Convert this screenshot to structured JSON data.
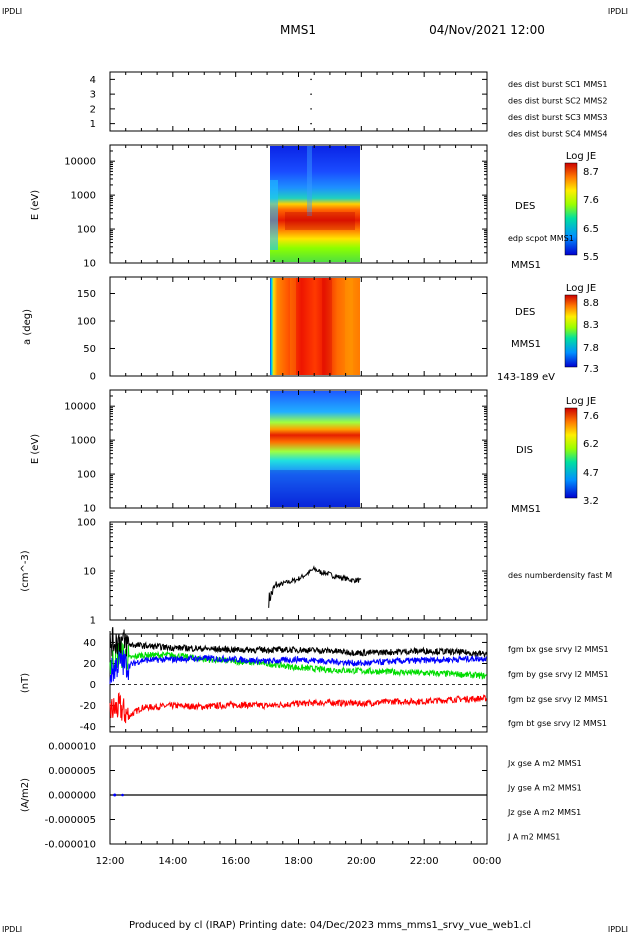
{
  "header": {
    "corner_left": "IPDLI",
    "corner_right": "IPDLI",
    "mission": "MMS1",
    "datetime": "04/Nov/2021 12:00",
    "corner_bottom_left": "IPDLI",
    "corner_bottom_right": "IPDLI"
  },
  "footer": {
    "text": "Produced by cl (IRAP)   Printing date: 04/Dec/2023   mms_mms1_srvy_vue_web1.cl"
  },
  "time_axis": {
    "ticks": [
      "12:00",
      "14:00",
      "16:00",
      "18:00",
      "20:00",
      "22:00",
      "00:00"
    ]
  },
  "chart_data": [
    {
      "type": "scatter",
      "panel": "burst",
      "ylim": [
        0.5,
        4.5
      ],
      "yticks": [
        "4",
        "3",
        "2",
        "1"
      ],
      "legend": [
        {
          "text": "des dist burst SC1 MMS1",
          "color": "#0000cc"
        },
        {
          "text": "des dist burst SC2 MMS2",
          "color": "#cc00cc"
        },
        {
          "text": "des dist burst SC3 MMS3",
          "color": "#dd0000"
        },
        {
          "text": "des dist burst SC4 MMS4",
          "color": "#00bb00"
        }
      ],
      "points": [
        {
          "x": 18.4,
          "y": 4
        },
        {
          "x": 18.4,
          "y": 3
        },
        {
          "x": 18.4,
          "y": 2
        },
        {
          "x": 18.4,
          "y": 1
        }
      ]
    },
    {
      "type": "heatmap",
      "panel": "des_energy",
      "ylabel": "E (eV)",
      "yscale": "log",
      "ylim": [
        10,
        30000
      ],
      "yticks": [
        "10000",
        "1000",
        "100",
        "10"
      ],
      "x_range": [
        17.05,
        20.0
      ],
      "colorbar": {
        "title": "Log JE",
        "ticks": [
          "8.7",
          "7.6",
          "6.5",
          "5.5"
        ],
        "min": 5.5,
        "max": 8.7
      },
      "labels": {
        "species": "DES",
        "overlay": "edp scpot MMS1",
        "sc": "MMS1"
      }
    },
    {
      "type": "heatmap",
      "panel": "des_pitch",
      "ylabel": "a (deg)",
      "ylim": [
        0,
        180
      ],
      "yticks": [
        "150",
        "100",
        "50",
        "0"
      ],
      "x_range": [
        17.05,
        20.0
      ],
      "colorbar": {
        "title": "Log JE",
        "ticks": [
          "8.8",
          "8.3",
          "7.8",
          "7.3"
        ],
        "min": 7.3,
        "max": 8.8
      },
      "labels": {
        "species": "DES",
        "sc": "MMS1",
        "energy": "143-189 eV"
      }
    },
    {
      "type": "heatmap",
      "panel": "dis_energy",
      "ylabel": "E (eV)",
      "yscale": "log",
      "ylim": [
        10,
        30000
      ],
      "yticks": [
        "10000",
        "1000",
        "100",
        "10"
      ],
      "x_range": [
        17.05,
        20.0
      ],
      "colorbar": {
        "title": "Log JE",
        "ticks": [
          "7.6",
          "6.2",
          "4.7",
          "3.2"
        ],
        "min": 3.2,
        "max": 7.6
      },
      "labels": {
        "species": "DIS",
        "sc": "MMS1"
      }
    },
    {
      "type": "line",
      "panel": "density",
      "ylabel": "(cm^-3)",
      "yscale": "log",
      "ylim": [
        1,
        100
      ],
      "yticks": [
        "100",
        "10",
        "1"
      ],
      "series": [
        {
          "name": "des numberdensity fast M",
          "color": "#000000",
          "x": [
            17.05,
            17.15,
            17.3,
            17.5,
            17.7,
            17.9,
            18.1,
            18.3,
            18.5,
            18.7,
            18.9,
            19.1,
            19.3,
            19.5,
            19.7,
            19.9,
            20.0
          ],
          "values": [
            2.5,
            3.5,
            5.0,
            5.5,
            6.0,
            6.5,
            7.5,
            9.0,
            11.0,
            9.5,
            9.0,
            8.0,
            7.5,
            7.0,
            6.5,
            6.5,
            6.0
          ]
        }
      ]
    },
    {
      "type": "line",
      "panel": "fgm",
      "ylabel": "(nT)",
      "ylim": [
        -45,
        48
      ],
      "yticks": [
        "40",
        "20",
        "0",
        "-20",
        "-40"
      ],
      "series": [
        {
          "name": "fgm bx gse srvy l2 MMS1",
          "color": "#ff0000",
          "x": [
            12.0,
            12.3,
            12.6,
            13.0,
            14.0,
            15.0,
            16.0,
            17.0,
            18.0,
            19.0,
            20.0,
            21.0,
            22.0,
            23.0,
            24.0
          ],
          "values": [
            -25,
            -22,
            -30,
            -22,
            -20,
            -21,
            -19,
            -20,
            -18,
            -17,
            -18,
            -16,
            -16,
            -14,
            -13
          ]
        },
        {
          "name": "fgm by gse srvy l2 MMS1",
          "color": "#00dd00",
          "x": [
            12.0,
            12.3,
            12.6,
            13.0,
            14.0,
            15.0,
            16.0,
            17.0,
            18.0,
            19.0,
            20.0,
            21.0,
            22.0,
            23.0,
            24.0
          ],
          "values": [
            20,
            30,
            25,
            28,
            28,
            24,
            22,
            20,
            16,
            14,
            13,
            12,
            11,
            10,
            8
          ]
        },
        {
          "name": "fgm bz gse srvy l2 MMS1",
          "color": "#0000ff",
          "x": [
            12.0,
            12.3,
            12.6,
            13.0,
            14.0,
            15.0,
            16.0,
            17.0,
            18.0,
            19.0,
            20.0,
            21.0,
            22.0,
            23.0,
            24.0
          ],
          "values": [
            10,
            22,
            18,
            23,
            24,
            25,
            24,
            22,
            24,
            22,
            20,
            22,
            23,
            24,
            25
          ]
        },
        {
          "name": "fgm bt gse srvy l2 MMS1",
          "color": "#000000",
          "x": [
            12.0,
            12.3,
            12.6,
            13.0,
            14.0,
            15.0,
            16.0,
            17.0,
            18.0,
            19.0,
            20.0,
            21.0,
            22.0,
            23.0,
            24.0
          ],
          "values": [
            40,
            42,
            38,
            37,
            35,
            34,
            33,
            33,
            33,
            32,
            30,
            31,
            32,
            31,
            29
          ]
        }
      ]
    },
    {
      "type": "line",
      "panel": "current",
      "ylabel": "(A/m2)",
      "ylim": [
        -1e-05,
        1e-05
      ],
      "yticks": [
        "0.000010",
        "0.000005",
        "0.000000",
        "-0.000005",
        "-0.000010"
      ],
      "legend": [
        {
          "text": "Jx gse A m2 MMS1",
          "color": "#ff0000"
        },
        {
          "text": "Jy gse A m2 MMS1",
          "color": "#00bb00"
        },
        {
          "text": "Jz gse A m2 MMS1",
          "color": "#0000ff"
        },
        {
          "text": "J A m2 MMS1",
          "color": "#000000"
        }
      ],
      "series": [
        {
          "name": "J A m2 MMS1",
          "color": "#000000",
          "x": [
            12.0,
            24.0
          ],
          "values": [
            0,
            0
          ]
        }
      ]
    }
  ]
}
